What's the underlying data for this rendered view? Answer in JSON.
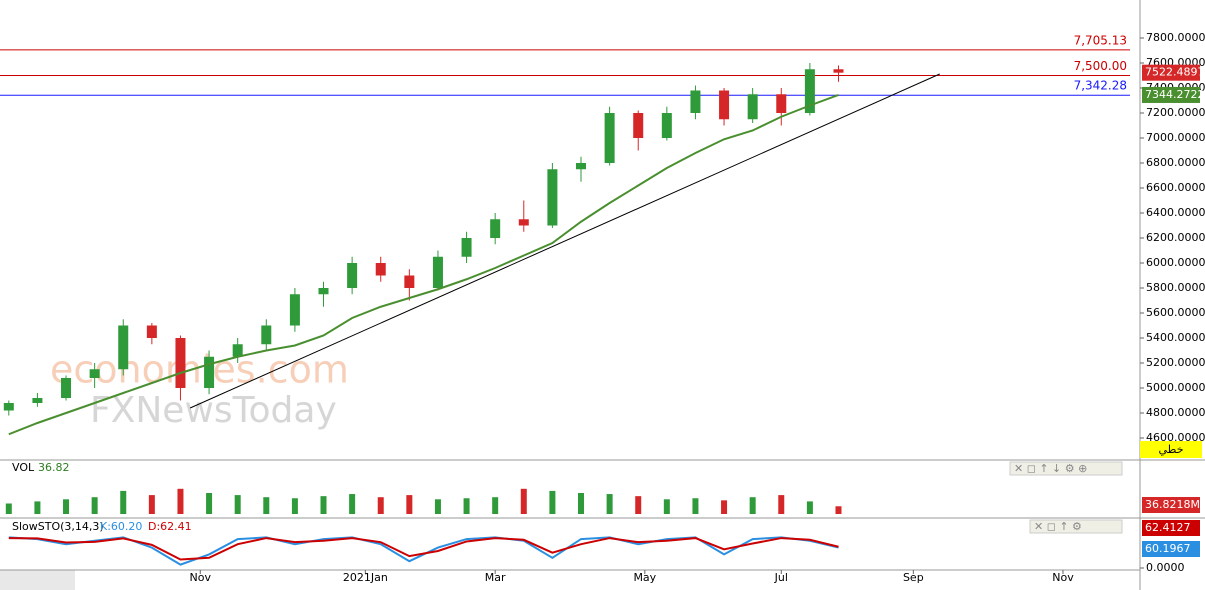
{
  "chart_data": {
    "type": "candlestick",
    "watermark": [
      "economies.com",
      "FXNewsToday"
    ],
    "x": [
      4,
      17,
      30,
      43,
      56,
      69,
      82,
      95,
      108,
      121,
      134,
      147,
      160,
      173,
      186,
      199,
      212,
      225,
      238,
      251,
      264,
      277,
      290,
      303,
      316,
      329,
      342,
      355,
      368,
      381
    ],
    "xlim": [
      0,
      518
    ],
    "xticks": [
      {
        "value": 91,
        "label": "Nov"
      },
      {
        "value": 166,
        "label": "2021Jan"
      },
      {
        "value": 225,
        "label": "Mar"
      },
      {
        "value": 293,
        "label": "May"
      },
      {
        "value": 355,
        "label": "Jul"
      },
      {
        "value": 415,
        "label": "Sep"
      },
      {
        "value": 483,
        "label": "Nov"
      }
    ],
    "ylim": [
      4424,
      8104
    ],
    "yticks": [
      {
        "value": 4600,
        "label": "4600.0000"
      },
      {
        "value": 4800,
        "label": "4800.0000"
      },
      {
        "value": 5000,
        "label": "5000.0000"
      },
      {
        "value": 5200,
        "label": "5200.0000"
      },
      {
        "value": 5400,
        "label": "5400.0000"
      },
      {
        "value": 5600,
        "label": "5600.0000"
      },
      {
        "value": 5800,
        "label": "5800.0000"
      },
      {
        "value": 6000,
        "label": "6000.0000"
      },
      {
        "value": 6200,
        "label": "6200.0000"
      },
      {
        "value": 6400,
        "label": "6400.0000"
      },
      {
        "value": 6600,
        "label": "6600.0000"
      },
      {
        "value": 6800,
        "label": "6800.0000"
      },
      {
        "value": 7000,
        "label": "7000.0000"
      },
      {
        "value": 7200,
        "label": "7200.0000"
      },
      {
        "value": 7400,
        "label": "7400.0000"
      },
      {
        "value": 7600,
        "label": "7600.0000"
      },
      {
        "value": 7800,
        "label": "7800.0000"
      }
    ],
    "candles": {
      "open": [
        4820,
        4880,
        4920,
        5080,
        5150,
        5500,
        5400,
        5000,
        5250,
        5350,
        5500,
        5750,
        5800,
        6000,
        5900,
        5800,
        6050,
        6200,
        6350,
        6300,
        6750,
        6800,
        7200,
        7000,
        7200,
        7380,
        7150,
        7350,
        7200,
        7550
      ],
      "high": [
        4900,
        4960,
        5100,
        5200,
        5550,
        5520,
        5420,
        5300,
        5400,
        5550,
        5800,
        5850,
        6050,
        6050,
        5950,
        6100,
        6250,
        6400,
        6500,
        6800,
        6850,
        7250,
        7220,
        7250,
        7420,
        7400,
        7400,
        7400,
        7600,
        7580
      ],
      "low": [
        4780,
        4850,
        4900,
        5000,
        5100,
        5350,
        4900,
        4950,
        5200,
        5300,
        5450,
        5650,
        5750,
        5850,
        5700,
        5780,
        6000,
        6150,
        6250,
        6280,
        6650,
        6780,
        6900,
        6980,
        7150,
        7100,
        7120,
        7100,
        7180,
        7450
      ],
      "close": [
        4880,
        4920,
        5080,
        5150,
        5500,
        5400,
        5000,
        5250,
        5350,
        5500,
        5750,
        5800,
        6000,
        5900,
        5800,
        6050,
        6200,
        6350,
        6300,
        6750,
        6800,
        7200,
        7000,
        7200,
        7380,
        7150,
        7350,
        7200,
        7550,
        7522.4897
      ],
      "up_color": "#2e9a3a",
      "down_color": "#d62728"
    },
    "ma": {
      "values": [
        4630,
        4720,
        4800,
        4880,
        4960,
        5040,
        5120,
        5190,
        5250,
        5300,
        5340,
        5420,
        5560,
        5650,
        5720,
        5790,
        5870,
        5960,
        6060,
        6160,
        6330,
        6480,
        6620,
        6760,
        6880,
        6990,
        7060,
        7170,
        7260,
        7344.2722
      ],
      "color": "#4a8f2f"
    },
    "trendline": {
      "x": [
        86.4,
        427
      ],
      "values": [
        4840,
        7512
      ],
      "color": "#000000"
    },
    "levels": [
      {
        "value": 7705.13,
        "label": "7,705.13",
        "color": "#cc0000"
      },
      {
        "value": 7500.0,
        "label": "7,500.00",
        "color": "#cc0000"
      },
      {
        "value": 7342.28,
        "label": "7,342.28",
        "color": "#1a1aff"
      }
    ],
    "mode_label": "خطي",
    "volume": {
      "name": "VOL",
      "values": [
        50,
        60,
        70,
        80,
        110,
        90,
        120,
        100,
        90,
        80,
        75,
        85,
        95,
        80,
        90,
        70,
        75,
        80,
        120,
        110,
        100,
        95,
        85,
        70,
        75,
        65,
        80,
        90,
        60,
        36.82
      ],
      "ylim": [
        0,
        200
      ],
      "current_label": "36.8218M"
    },
    "stochastic": {
      "name": "SlowSTO(3,14,3)",
      "k_label": "K:60.20",
      "d_label": "D:62.41",
      "ylim": [
        0,
        100
      ],
      "yticks": [
        {
          "value": 0,
          "label": "0.0000"
        }
      ],
      "series": [
        {
          "name": "K",
          "color": "#2a8fe0",
          "values": [
            90,
            85,
            70,
            80,
            90,
            60,
            10,
            40,
            85,
            90,
            70,
            85,
            90,
            70,
            20,
            60,
            85,
            90,
            80,
            30,
            85,
            90,
            70,
            85,
            90,
            40,
            85,
            90,
            80,
            60.1967
          ]
        },
        {
          "name": "D",
          "color": "#cc0000",
          "values": [
            88,
            87,
            75,
            77,
            87,
            68,
            25,
            30,
            70,
            88,
            76,
            80,
            88,
            76,
            35,
            50,
            78,
            88,
            83,
            45,
            70,
            88,
            76,
            80,
            88,
            55,
            72,
            88,
            83,
            62.4127
          ]
        }
      ]
    }
  }
}
